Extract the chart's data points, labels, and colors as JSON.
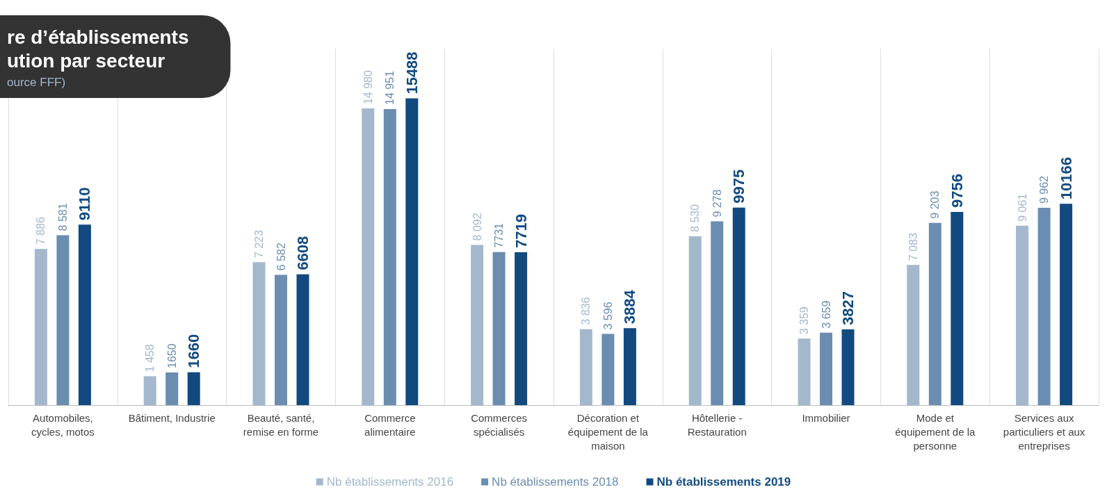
{
  "chart_data": {
    "type": "bar",
    "title": "re d’établissements\nution par secteur",
    "subtitle": "ource FFF)",
    "categories": [
      "Automobiles,\ncycles, motos",
      "Bâtiment, Industrie",
      "Beauté, santé,\nremise en forme",
      "Commerce\nalimentaire",
      "Commerces\nspécialisés",
      "Décoration et\néquipement de la\nmaison",
      "Hôtellerie -\nRestauration",
      "Immobilier",
      "Mode et\néquipement de la\npersonne",
      "Services aux\nparticuliers et aux\nentreprises"
    ],
    "series": [
      {
        "name": "Nb établissements 2016",
        "color": "#a3b8cc",
        "values": [
          7886,
          1458,
          7223,
          14980,
          8092,
          3836,
          8530,
          3359,
          7083,
          9061
        ],
        "value_labels": [
          "7 886",
          "1 458",
          "7 223",
          "14 980",
          "8 092",
          "3 836",
          "8 530",
          "3 359",
          "7 083",
          "9 061"
        ]
      },
      {
        "name": "Nb établissements 2018",
        "color": "#6a8db0",
        "values": [
          8581,
          1650,
          6582,
          14951,
          7731,
          3596,
          9278,
          3659,
          9203,
          9962
        ],
        "value_labels": [
          "8 581",
          "1650",
          "6 582",
          "14 951",
          "7731",
          "3 596",
          "9 278",
          "3 659",
          "9 203",
          "9 962"
        ]
      },
      {
        "name": "Nb établissements 2019",
        "color": "#124a80",
        "values": [
          9110,
          1660,
          6608,
          15488,
          7719,
          3884,
          9975,
          3827,
          9756,
          10166
        ],
        "value_labels": [
          "9110",
          "1660",
          "6608",
          "15488",
          "7719",
          "3884",
          "9975",
          "3827",
          "9756",
          "10166"
        ]
      }
    ],
    "grid": "x",
    "legend": "bottom"
  }
}
